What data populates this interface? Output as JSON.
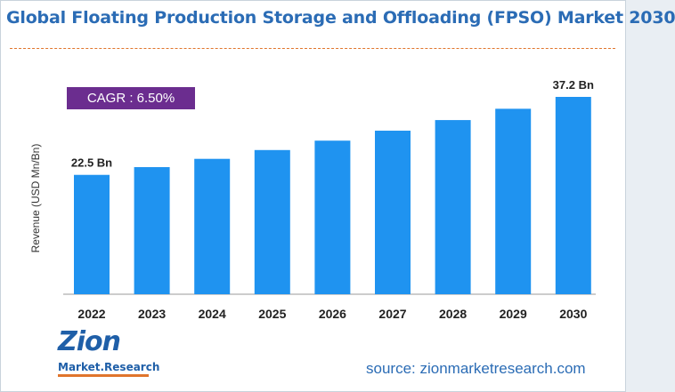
{
  "title": "Global Floating Production Storage and Offloading (FPSO) Market 2030",
  "cagr_label": "CAGR : 6.50%",
  "source": "source: zionmarketresearch.com",
  "logo": {
    "word": "Zion",
    "sub": "Market.Research"
  },
  "colors": {
    "bar": "#1f93f0",
    "title": "#2b6cb5",
    "cagr_bg": "#6b2d8f",
    "dash": "#e0752c"
  },
  "chart_data": {
    "type": "bar",
    "categories": [
      "2022",
      "2023",
      "2024",
      "2025",
      "2026",
      "2027",
      "2028",
      "2029",
      "2030"
    ],
    "values": [
      22.5,
      23.96,
      25.52,
      27.18,
      28.95,
      30.83,
      32.83,
      34.96,
      37.2
    ],
    "data_labels": [
      "22.5 Bn",
      "",
      "",
      "",
      "",
      "",
      "",
      "",
      "37.2 Bn"
    ],
    "title": "Global Floating Production Storage and Offloading (FPSO) Market 2030",
    "xlabel": "",
    "ylabel": "Revenue (USD Mn/Bn)",
    "ylim": [
      0,
      40
    ],
    "grid": false,
    "legend": "none"
  }
}
